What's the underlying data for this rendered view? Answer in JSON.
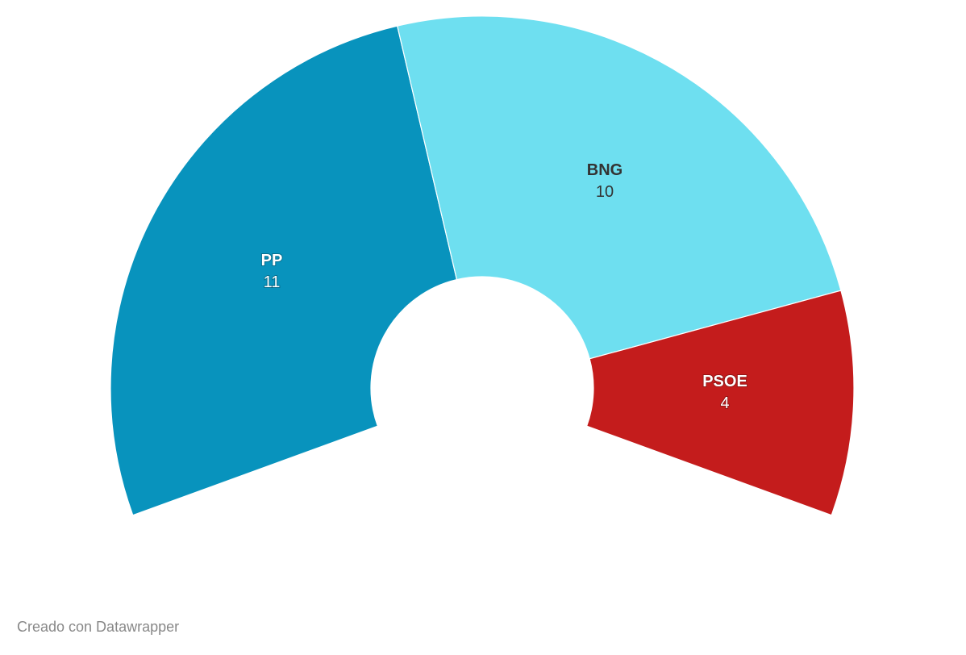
{
  "chart_data": {
    "type": "pie",
    "variant": "semi-donut (parliament arc)",
    "title": "",
    "categories": [
      "PP",
      "BNG",
      "PSOE"
    ],
    "values": [
      11,
      10,
      4
    ],
    "total": 25,
    "colors": [
      "#0893bd",
      "#6edff0",
      "#c41c1c"
    ],
    "label_colors": [
      "#ffffff",
      "#333333",
      "#ffffff"
    ],
    "arc_start_deg": 200,
    "arc_span_deg": 220,
    "legend": "none (inline labels)"
  },
  "labels": {
    "pp": {
      "name": "PP",
      "value": "11"
    },
    "bng": {
      "name": "BNG",
      "value": "10"
    },
    "psoe": {
      "name": "PSOE",
      "value": "4"
    }
  },
  "footer": {
    "credit": "Creado con Datawrapper"
  }
}
